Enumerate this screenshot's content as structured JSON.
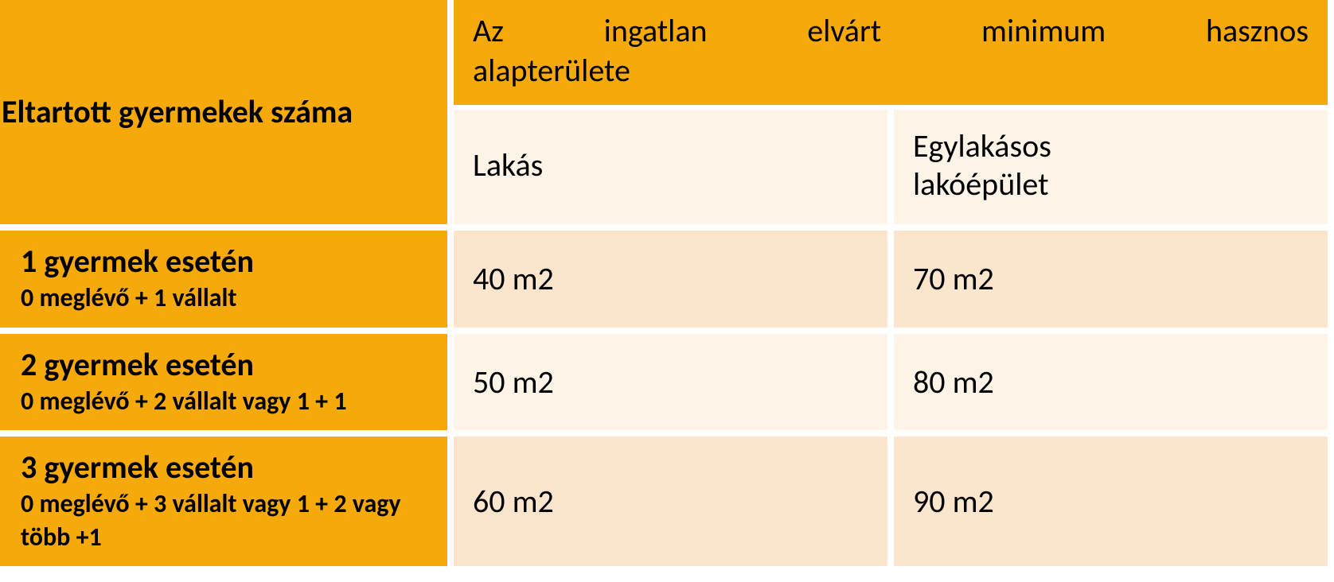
{
  "colors": {
    "orange": "#f5a90b",
    "cream_light": "#fdf3e7",
    "cream_dark": "#fbe6cd",
    "text": "#000000",
    "gap": "#ffffff"
  },
  "table": {
    "header_left": "Eltartott gyermekek száma",
    "header_group_line1": "Az ingatlan elvárt minimum hasznos",
    "header_group_line2": "alapterülete",
    "subheaders": {
      "col_a": "Lakás",
      "col_b_line1": "Egylakásos",
      "col_b_line2": "lakóépület"
    },
    "rows": [
      {
        "label_main": "1 gyermek esetén",
        "label_sub": "0 meglévő + 1 vállalt",
        "col_a": "40 m2",
        "col_b": "70 m2",
        "shade": "dark"
      },
      {
        "label_main": "2 gyermek esetén",
        "label_sub": "0 meglévő + 2 vállalt vagy 1 + 1",
        "col_a": "50 m2",
        "col_b": "80 m2",
        "shade": "light"
      },
      {
        "label_main": "3 gyermek esetén",
        "label_sub": "0 meglévő + 3 vállalt vagy 1 + 2 vagy több +1",
        "col_a": "60 m2",
        "col_b": "90 m2",
        "shade": "dark"
      }
    ]
  }
}
